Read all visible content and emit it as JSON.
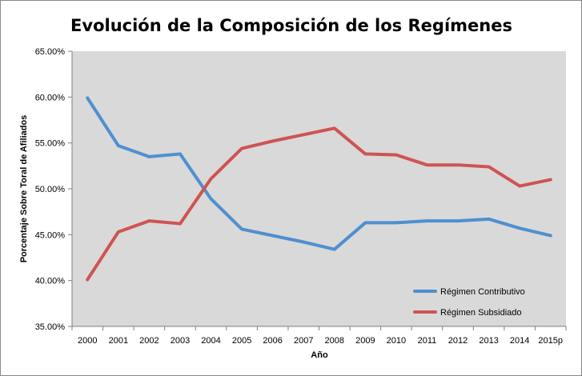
{
  "chart_data": {
    "type": "line",
    "title": "Evolución de la Composición de los Regímenes",
    "xlabel": "Año",
    "ylabel": "Porcentaje Sobre Toral de Afiliados",
    "categories": [
      "2000",
      "2001",
      "2002",
      "2003",
      "2004",
      "2005",
      "2006",
      "2007",
      "2008",
      "2009",
      "2010",
      "2011",
      "2012",
      "2013",
      "2014",
      "2015p"
    ],
    "y_ticks": [
      "35.00%",
      "40.00%",
      "45.00%",
      "50.00%",
      "55.00%",
      "60.00%",
      "65.00%"
    ],
    "ylim": [
      35,
      65
    ],
    "grid": false,
    "legend_position": "bottom-right",
    "plot_background": "#d9d9d9",
    "series": [
      {
        "name": "Régimen Contributivo",
        "color": "#4f8fd0",
        "values": [
          59.9,
          54.7,
          53.5,
          53.8,
          48.9,
          45.6,
          44.9,
          44.2,
          43.4,
          46.3,
          46.3,
          46.5,
          46.5,
          46.7,
          45.7,
          44.9
        ]
      },
      {
        "name": "Régimen Subsidiado",
        "color": "#cf5353",
        "values": [
          40.1,
          45.3,
          46.5,
          46.2,
          51.1,
          54.4,
          55.2,
          55.9,
          56.6,
          53.8,
          53.7,
          52.6,
          52.6,
          52.4,
          50.3,
          51.0
        ]
      }
    ]
  }
}
